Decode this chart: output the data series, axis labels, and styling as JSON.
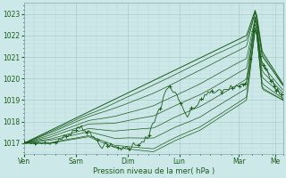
{
  "xlabel": "Pression niveau de la mer( hPa )",
  "ylim": [
    1016.5,
    1023.5
  ],
  "yticks": [
    1017,
    1018,
    1019,
    1020,
    1021,
    1022,
    1023
  ],
  "bg_color": "#cce8e8",
  "grid_color_major": "#aacccc",
  "grid_color_minor": "#bdd8d8",
  "line_color": "#1a5c1a",
  "text_color": "#1a5c1a",
  "day_labels": [
    "Ven",
    "Sam",
    "Dim",
    "Lun",
    "Mar",
    "Me"
  ],
  "day_fracs": [
    0.0,
    0.2,
    0.4,
    0.6,
    0.83,
    0.97
  ],
  "n_points": 150
}
